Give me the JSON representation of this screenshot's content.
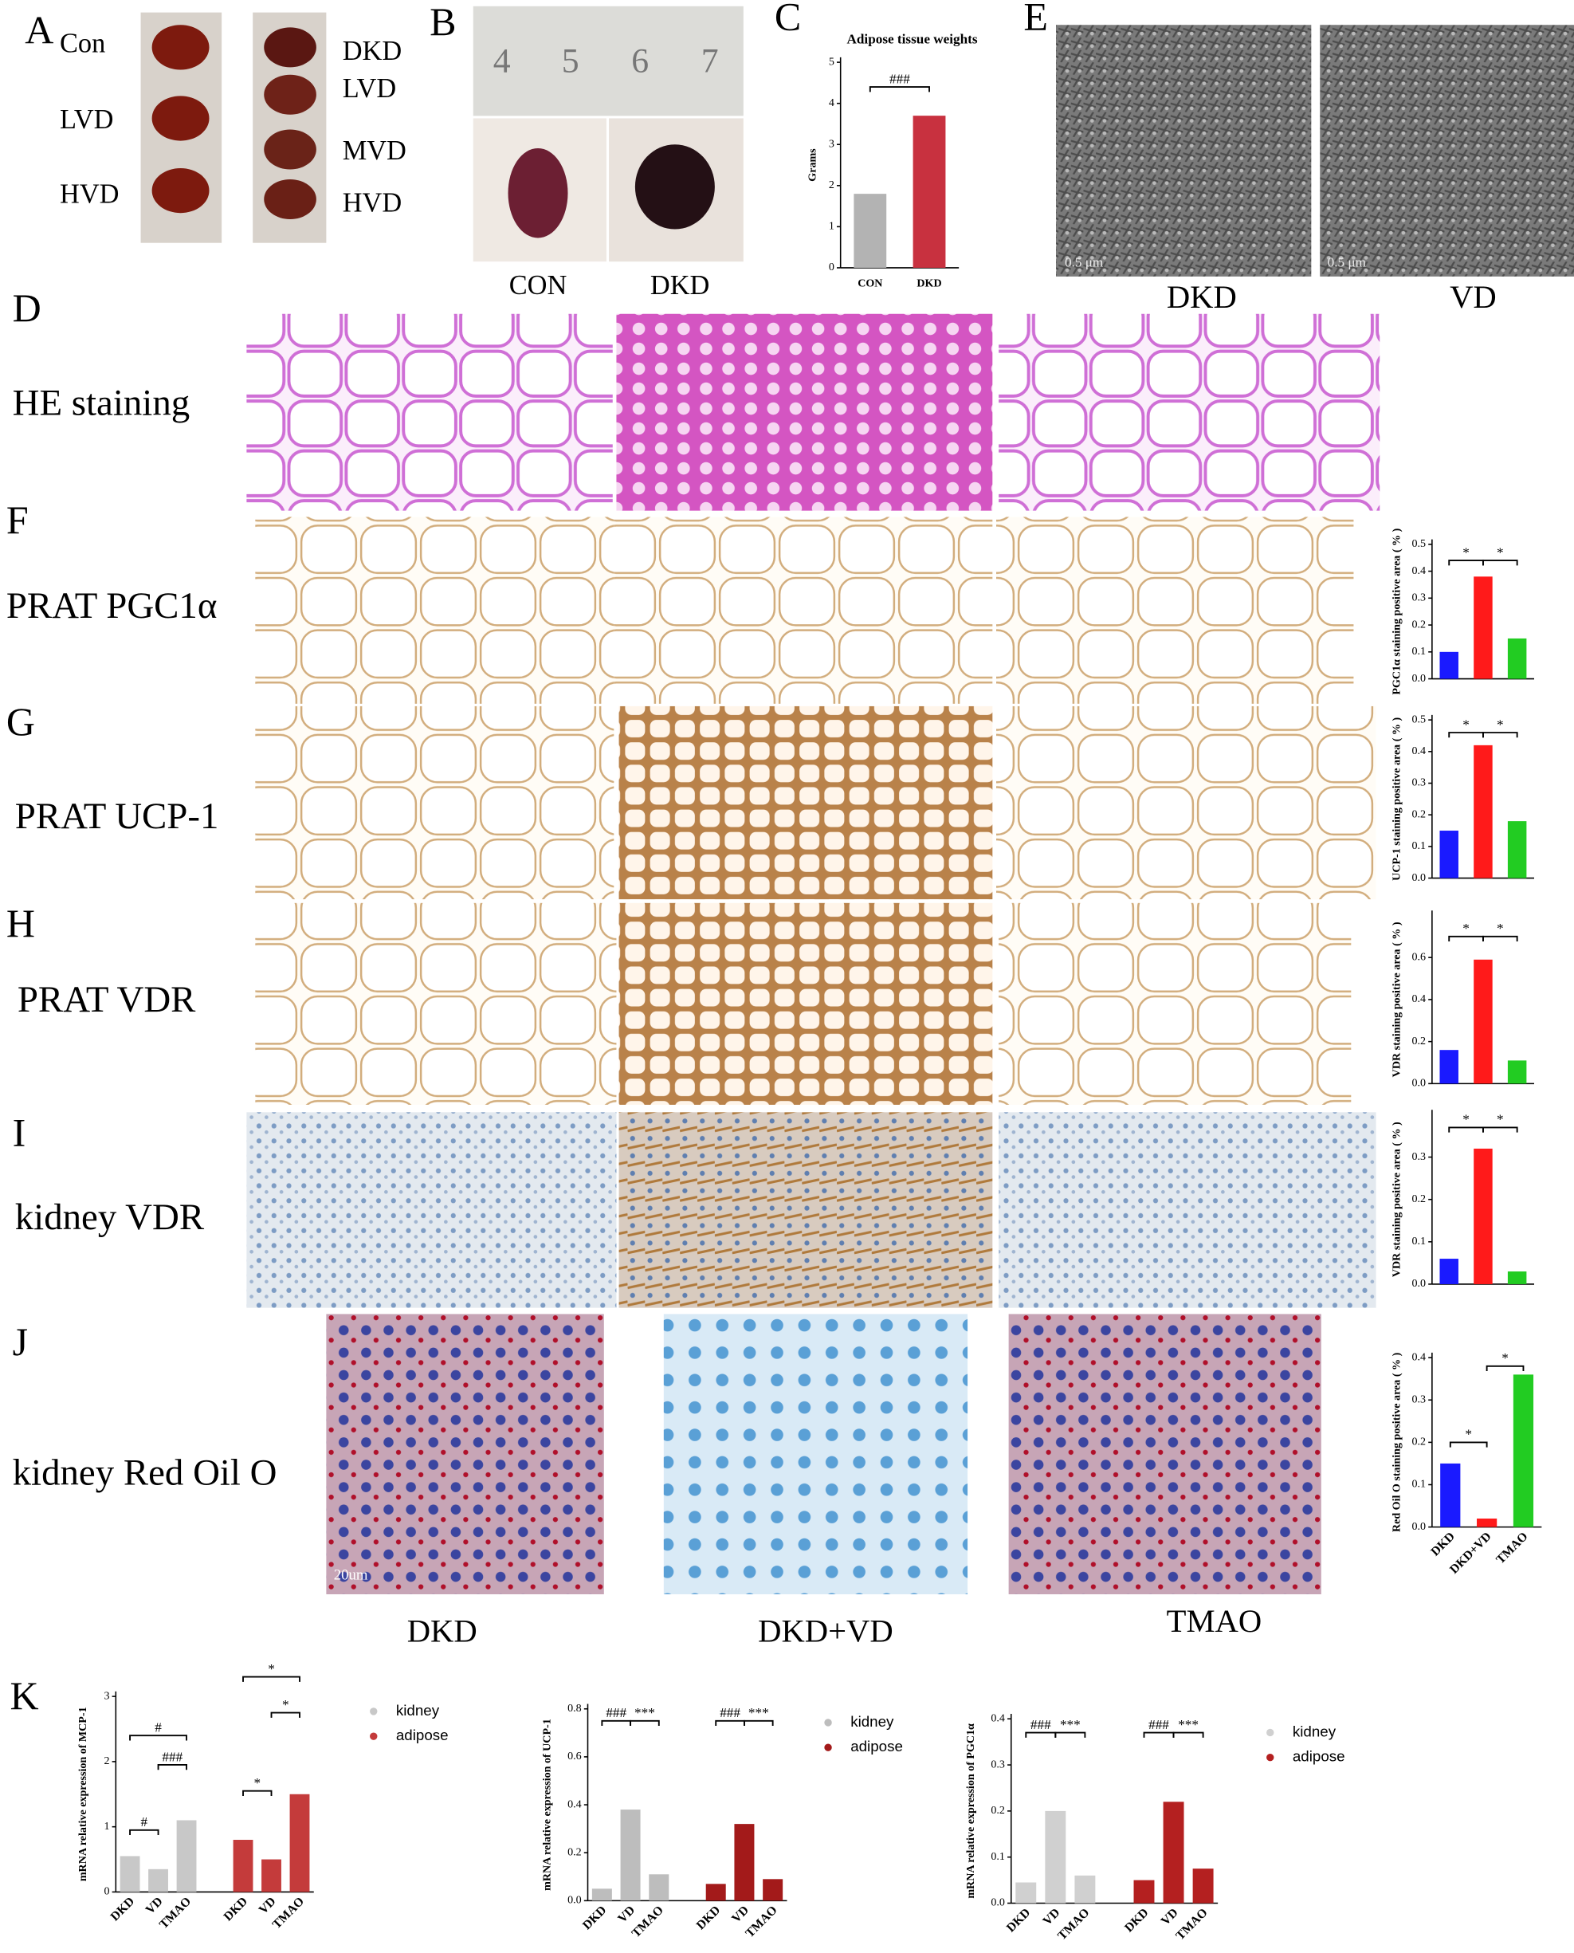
{
  "figure": {
    "A": {
      "letter": "A",
      "left": [
        "Con",
        "LVD",
        "HVD"
      ],
      "right": [
        "DKD",
        "LVD",
        "MVD",
        "HVD"
      ]
    },
    "B": {
      "letter": "B",
      "ruler": [
        "4",
        "5",
        "6",
        "7"
      ],
      "captions": [
        "CON",
        "DKD"
      ]
    },
    "C": {
      "letter": "C"
    },
    "D": {
      "letter": "D",
      "row": "HE staining"
    },
    "E": {
      "letter": "E",
      "captions": [
        "DKD",
        "VD"
      ],
      "scale": "0.5 μm"
    },
    "F": {
      "letter": "F",
      "row": "PRAT PGC1α"
    },
    "G": {
      "letter": "G",
      "row": "PRAT UCP-1"
    },
    "H": {
      "letter": "H",
      "row": "PRAT VDR"
    },
    "I": {
      "letter": "I",
      "row": "kidney VDR"
    },
    "J": {
      "letter": "J",
      "row": "kidney Red Oil O",
      "scale": "20um",
      "captions": [
        "DKD",
        "DKD+VD",
        "TMAO"
      ]
    },
    "K": {
      "letter": "K"
    }
  },
  "chart_data": [
    {
      "type": "bar",
      "title": "Adipose tissue weights",
      "y_label": "Grams",
      "categories": [
        "CON",
        "DKD"
      ],
      "values": [
        1.8,
        3.7
      ],
      "colors": [
        "#b3b3b3",
        "#c8313f"
      ],
      "ylim": [
        0,
        5
      ],
      "yticks": [
        0,
        1,
        2,
        3,
        4,
        5
      ],
      "annotations": [
        "###"
      ]
    },
    {
      "type": "bar",
      "y_label": "PGC1α staining positive area ( % )",
      "values": [
        0.1,
        0.38,
        0.15
      ],
      "colors": [
        "#1a1aff",
        "#ff1a1a",
        "#22cc22"
      ],
      "ylim": [
        0,
        0.5
      ],
      "yticks": [
        {
          "value": 0,
          "label": "0.0"
        },
        0.1,
        0.2,
        0.3,
        0.4,
        0.5
      ],
      "annotations": [
        "*",
        "*"
      ]
    },
    {
      "type": "bar",
      "y_label": "UCP-1 staining positive area ( % )",
      "values": [
        0.15,
        0.42,
        0.18
      ],
      "colors": [
        "#1a1aff",
        "#ff1a1a",
        "#22cc22"
      ],
      "ylim": [
        0,
        0.5
      ],
      "yticks": [
        {
          "value": 0,
          "label": "0.0"
        },
        0.1,
        0.2,
        0.3,
        0.4,
        0.5
      ],
      "annotations": [
        "*",
        "*"
      ]
    },
    {
      "type": "bar",
      "y_label": "VDR staining positive area ( % )",
      "values": [
        0.16,
        0.59,
        0.11
      ],
      "colors": [
        "#1a1aff",
        "#ff1a1a",
        "#22cc22"
      ],
      "ylim": [
        0,
        0.8
      ],
      "yticks": [
        {
          "value": 0,
          "label": "0.0"
        },
        0.2,
        0.4,
        0.6
      ],
      "annotations": [
        "*",
        "*"
      ]
    },
    {
      "type": "bar",
      "y_label": "VDR staining positive area ( % )",
      "values": [
        0.06,
        0.32,
        0.03
      ],
      "colors": [
        "#1a1aff",
        "#ff1a1a",
        "#22cc22"
      ],
      "ylim": [
        0,
        0.4
      ],
      "yticks": [
        {
          "value": 0,
          "label": "0.0"
        },
        0.1,
        0.2,
        0.3
      ],
      "annotations": [
        "*",
        "*"
      ]
    },
    {
      "type": "bar",
      "y_label": "Red Oil O staining positive area ( % )",
      "categories": [
        "DKD",
        "DKD+VD",
        "TMAO"
      ],
      "values": [
        0.15,
        0.02,
        0.36
      ],
      "colors": [
        "#1a1aff",
        "#ff1a1a",
        "#22cc22"
      ],
      "ylim": [
        0,
        0.4
      ],
      "yticks": [
        {
          "value": 0,
          "label": "0.0"
        },
        0.1,
        0.2,
        0.3,
        0.4
      ],
      "annotations": [
        "*",
        "*"
      ]
    },
    {
      "type": "grouped-bar",
      "y_label": "mRNA relative expression of MCP-1",
      "categories": [
        "DKD",
        "VD",
        "TMAO"
      ],
      "series": [
        {
          "name": "kidney",
          "color": "#c8c8c8",
          "values": [
            0.55,
            0.35,
            1.1
          ]
        },
        {
          "name": "adipose",
          "color": "#c43b3b",
          "values": [
            0.8,
            0.5,
            1.5
          ]
        }
      ],
      "ylim": [
        0,
        3
      ],
      "yticks": [
        0,
        1,
        2,
        3
      ],
      "annotations": [
        "#",
        "###",
        "#",
        "*",
        "*",
        "*"
      ]
    },
    {
      "type": "grouped-bar",
      "y_label": "mRNA relative expression of UCP-1",
      "categories": [
        "DKD",
        "VD",
        "TMAO"
      ],
      "series": [
        {
          "name": "kidney",
          "color": "#bdbdbd",
          "values": [
            0.05,
            0.38,
            0.11
          ]
        },
        {
          "name": "adipose",
          "color": "#a31a1a",
          "values": [
            0.07,
            0.32,
            0.09
          ]
        }
      ],
      "ylim": [
        0,
        0.8
      ],
      "yticks": [
        {
          "value": 0,
          "label": "0.0"
        },
        0.2,
        0.4,
        0.6,
        0.8
      ],
      "annotations": [
        "###",
        "***",
        "###",
        "***"
      ]
    },
    {
      "type": "grouped-bar",
      "y_label": "mRNA relative expression of PGC1α",
      "categories": [
        "DKD",
        "VD",
        "TMAO"
      ],
      "series": [
        {
          "name": "kidney",
          "color": "#d0d0d0",
          "values": [
            0.045,
            0.2,
            0.06
          ]
        },
        {
          "name": "adipose",
          "color": "#b42020",
          "values": [
            0.05,
            0.22,
            0.075
          ]
        }
      ],
      "ylim": [
        0,
        0.4
      ],
      "yticks": [
        {
          "value": 0,
          "label": "0.0"
        },
        0.1,
        0.2,
        0.3,
        0.4
      ],
      "annotations": [
        "###",
        "***",
        "###",
        "***"
      ]
    }
  ]
}
